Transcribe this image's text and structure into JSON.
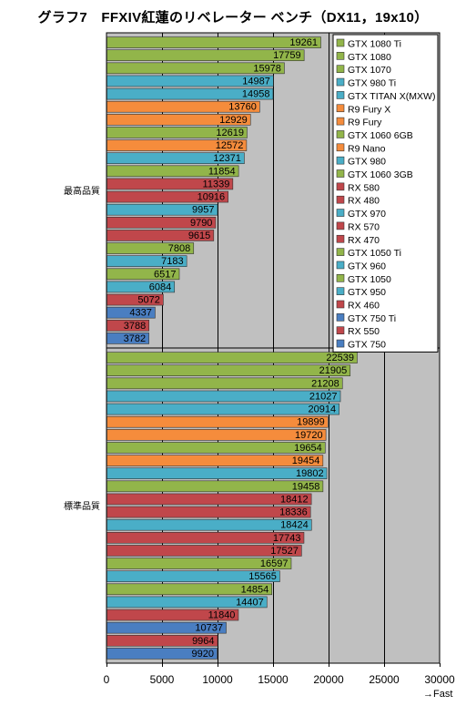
{
  "title": "グラフ7　FFXIV紅蓮のリベレーター ベンチ（DX11，19x10）",
  "x_axis_note": "→Fast",
  "colors": {
    "geforce": "#92b54a",
    "geforce_maxwell": "#4aaec7",
    "amd_fiji": "#f58c3c",
    "amd_polaris": "#c0474b",
    "geforce_kepler": "#4a7ec1",
    "plot_bg": "#c0c0c0",
    "outer_bg": "#ffffff"
  },
  "chart_data": {
    "type": "bar",
    "orientation": "horizontal",
    "xlim": [
      0,
      30000
    ],
    "xticks": [
      0,
      5000,
      10000,
      15000,
      20000,
      25000,
      30000
    ],
    "grid": true,
    "legend_position": "top-right",
    "categories": [
      "最高品質",
      "標準品質"
    ],
    "legend": [
      {
        "name": "GTX 1080 Ti",
        "color": "#92b54a"
      },
      {
        "name": "GTX 1080",
        "color": "#92b54a"
      },
      {
        "name": "GTX 1070",
        "color": "#92b54a"
      },
      {
        "name": "GTX 980 Ti",
        "color": "#4aaec7"
      },
      {
        "name": "GTX TITAN X(MXW)",
        "color": "#4aaec7"
      },
      {
        "name": "R9 Fury X",
        "color": "#f58c3c"
      },
      {
        "name": "R9 Fury",
        "color": "#f58c3c"
      },
      {
        "name": "GTX 1060 6GB",
        "color": "#92b54a"
      },
      {
        "name": "R9 Nano",
        "color": "#f58c3c"
      },
      {
        "name": "GTX 980",
        "color": "#4aaec7"
      },
      {
        "name": "GTX 1060 3GB",
        "color": "#92b54a"
      },
      {
        "name": "RX 580",
        "color": "#c0474b"
      },
      {
        "name": "RX 480",
        "color": "#c0474b"
      },
      {
        "name": "GTX 970",
        "color": "#4aaec7"
      },
      {
        "name": "RX 570",
        "color": "#c0474b"
      },
      {
        "name": "RX 470",
        "color": "#c0474b"
      },
      {
        "name": "GTX 1050 Ti",
        "color": "#92b54a"
      },
      {
        "name": "GTX 960",
        "color": "#4aaec7"
      },
      {
        "name": "GTX 1050",
        "color": "#92b54a"
      },
      {
        "name": "GTX 950",
        "color": "#4aaec7"
      },
      {
        "name": "RX 460",
        "color": "#c0474b"
      },
      {
        "name": "GTX 750 Ti",
        "color": "#4a7ec1"
      },
      {
        "name": "RX 550",
        "color": "#c0474b"
      },
      {
        "name": "GTX 750",
        "color": "#4a7ec1"
      }
    ],
    "groups": [
      {
        "label": "最高品質",
        "values": [
          19261,
          17759,
          15978,
          14987,
          14958,
          13760,
          12929,
          12619,
          12572,
          12371,
          11854,
          11339,
          10916,
          9957,
          9790,
          9615,
          7808,
          7183,
          6517,
          6084,
          5072,
          4337,
          3788,
          3782
        ]
      },
      {
        "label": "標準品質",
        "values": [
          22539,
          21905,
          21208,
          21027,
          20914,
          19899,
          19720,
          19654,
          19454,
          19802,
          19458,
          18412,
          18336,
          18424,
          17743,
          17527,
          16597,
          15565,
          14854,
          14407,
          11840,
          10737,
          9964,
          9920
        ]
      }
    ]
  }
}
